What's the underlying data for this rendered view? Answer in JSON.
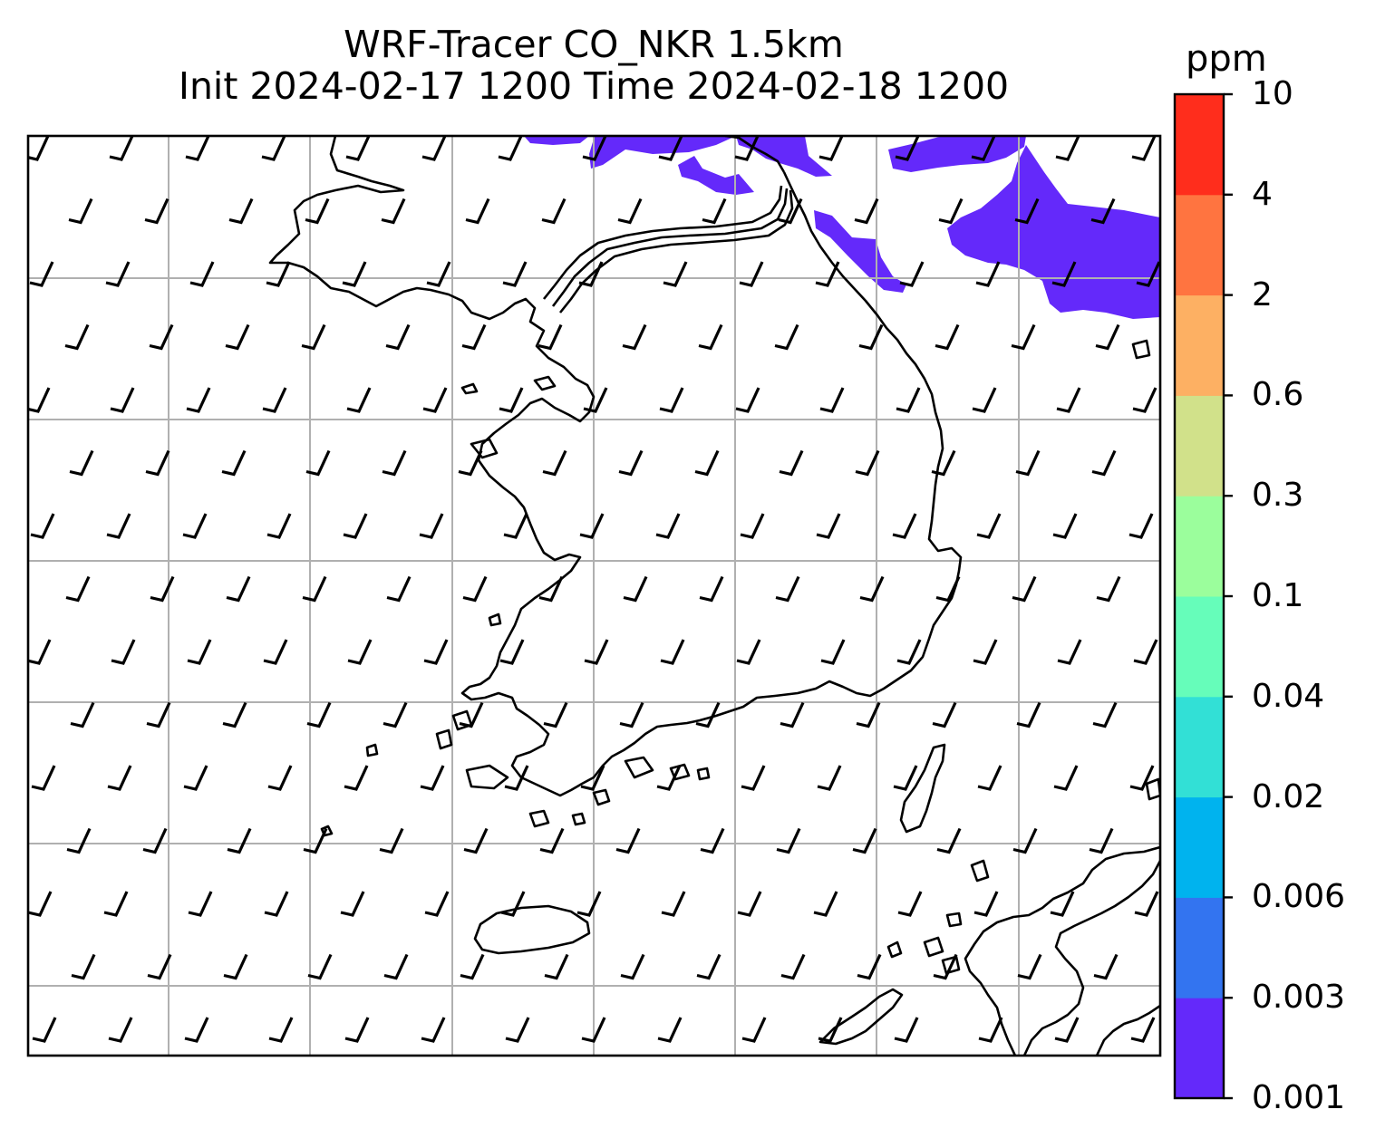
{
  "title": {
    "line1": "WRF-Tracer CO_NKR 1.5km",
    "line2": "Init 2024-02-17 1200 Time 2024-02-18 1200"
  },
  "colorbar": {
    "unit": "ppm",
    "levels": [
      "0.001",
      "0.003",
      "0.006",
      "0.02",
      "0.04",
      "0.1",
      "0.3",
      "0.6",
      "2",
      "4",
      "10"
    ],
    "colors": [
      "#6429fa",
      "#3374f0",
      "#00b3ee",
      "#32e0d6",
      "#66fdba",
      "#9bfe9c",
      "#d1e18a",
      "#fdb063",
      "#ff7440",
      "#ff2d1c"
    ]
  },
  "map": {
    "tracer_fill_color": "#6429fa",
    "coastline_color": "#000000",
    "grid_color": "#b0b0b0",
    "barb_icon": "wind-barb-icon"
  }
}
